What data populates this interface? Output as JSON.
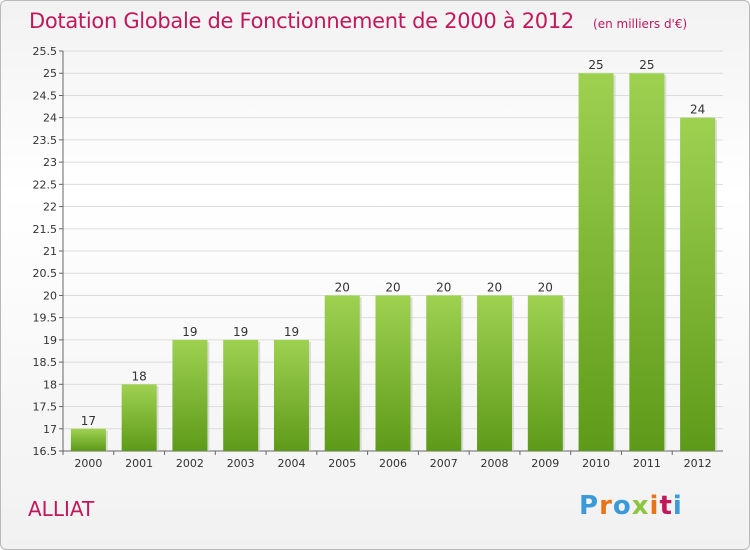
{
  "header": {
    "title": "Dotation Globale de Fonctionnement de 2000 à 2012",
    "unit": "(en milliers d'€)"
  },
  "footer": {
    "commune": "ALLIAT",
    "logo_text": "Proxiti",
    "logo_colors": [
      "#3a9ad9",
      "#e8731a",
      "#3a9ad9",
      "#8cc63f",
      "#e8731a",
      "#c2185b",
      "#3a9ad9"
    ]
  },
  "chart_data": {
    "type": "bar",
    "title": "Dotation Globale de Fonctionnement de 2000 à 2012",
    "subtitle": "(en milliers d'€)",
    "categories": [
      "2000",
      "2001",
      "2002",
      "2003",
      "2004",
      "2005",
      "2006",
      "2007",
      "2008",
      "2009",
      "2010",
      "2011",
      "2012"
    ],
    "values": [
      17,
      18,
      19,
      19,
      19,
      20,
      20,
      20,
      20,
      20,
      25,
      25,
      24
    ],
    "ylim": [
      16.5,
      25.5
    ],
    "yticks": [
      "16.5",
      "17",
      "17.5",
      "18",
      "18.5",
      "19",
      "19.5",
      "20",
      "20.5",
      "21",
      "21.5",
      "22",
      "22.5",
      "23",
      "23.5",
      "24",
      "24.5",
      "25",
      "25.5"
    ],
    "grid": true,
    "bar_color_top": "#9fd151",
    "bar_color_bottom": "#5e9a19",
    "legend": "none"
  }
}
